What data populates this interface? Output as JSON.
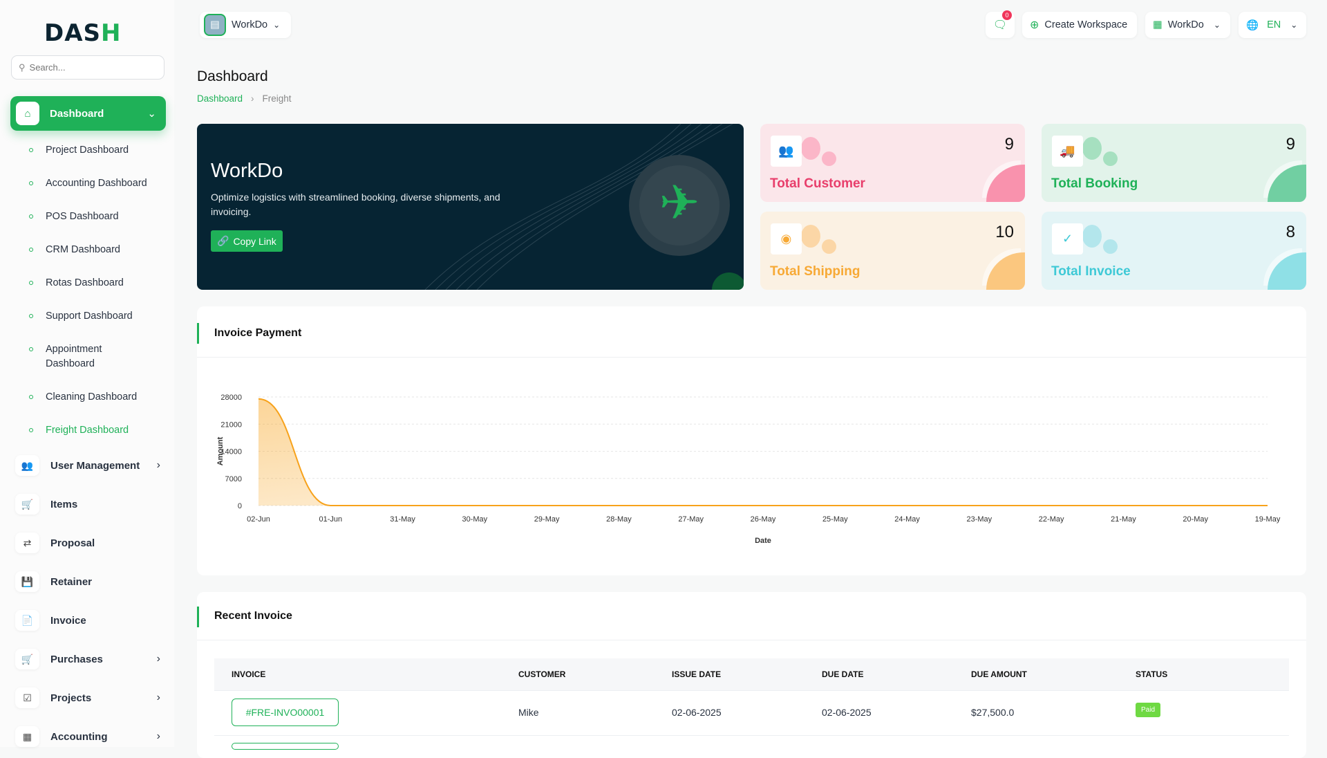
{
  "brand": {
    "logo": "DASH"
  },
  "sidebar": {
    "search_placeholder": "Search...",
    "active": "Dashboard",
    "subitems": [
      "Project Dashboard",
      "Accounting Dashboard",
      "POS Dashboard",
      "CRM Dashboard",
      "Rotas Dashboard",
      "Support Dashboard",
      "Appointment Dashboard",
      "Cleaning Dashboard",
      "Freight Dashboard"
    ],
    "items": [
      "User Management",
      "Items",
      "Proposal",
      "Retainer",
      "Invoice",
      "Purchases",
      "Projects",
      "Accounting"
    ]
  },
  "header": {
    "workspace": "WorkDo",
    "chat_badge": "0",
    "create_workspace": "Create Workspace",
    "workspace_menu": "WorkDo",
    "language": "EN"
  },
  "page": {
    "title": "Dashboard",
    "breadcrumb": [
      "Dashboard",
      "Freight"
    ]
  },
  "banner": {
    "title": "WorkDo",
    "text": "Optimize logistics with streamlined booking, diverse shipments, and invoicing.",
    "button": "Copy Link"
  },
  "stats": [
    {
      "label": "Total Customer",
      "value": "9",
      "color": "#e83e6b"
    },
    {
      "label": "Total Booking",
      "value": "9",
      "color": "#1fb158"
    },
    {
      "label": "Total Shipping",
      "value": "10",
      "color": "#f7a935"
    },
    {
      "label": "Total Invoice",
      "value": "8",
      "color": "#3ec9d6"
    }
  ],
  "chart_card": {
    "title": "Invoice Payment"
  },
  "chart_data": {
    "type": "area",
    "title": "Invoice Payment",
    "xlabel": "Date",
    "ylabel": "Amount",
    "categories": [
      "02-Jun",
      "01-Jun",
      "31-May",
      "30-May",
      "29-May",
      "28-May",
      "27-May",
      "26-May",
      "25-May",
      "24-May",
      "23-May",
      "22-May",
      "21-May",
      "20-May",
      "19-May"
    ],
    "values": [
      27500,
      0,
      0,
      0,
      0,
      0,
      0,
      0,
      0,
      0,
      0,
      0,
      0,
      0,
      0
    ],
    "yticks": [
      "0",
      "7000",
      "14000",
      "21000",
      "28000"
    ],
    "ylim": [
      0,
      28000
    ],
    "grid": true,
    "color": "#f7a21b"
  },
  "recent": {
    "title": "Recent Invoice",
    "columns": [
      "INVOICE",
      "CUSTOMER",
      "ISSUE DATE",
      "DUE DATE",
      "DUE AMOUNT",
      "STATUS"
    ],
    "rows": [
      {
        "invoice": "#FRE-INVO00001",
        "customer": "Mike",
        "issue": "02-06-2025",
        "due": "02-06-2025",
        "amount": "$27,500.0",
        "status": "Paid"
      }
    ]
  }
}
